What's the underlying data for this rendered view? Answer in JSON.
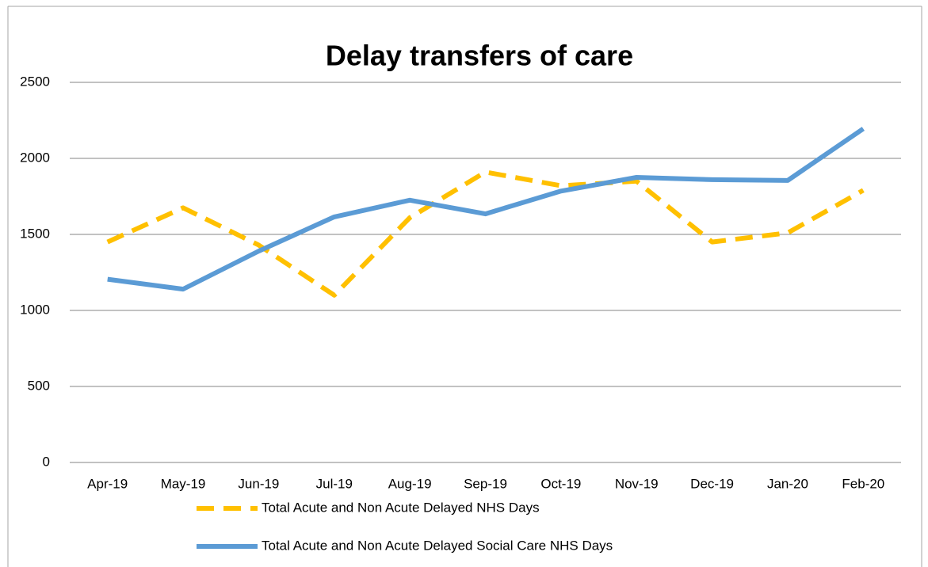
{
  "chart_data": {
    "type": "line",
    "title": "Delay transfers of care",
    "categories": [
      "Apr-19",
      "May-19",
      "Jun-19",
      "Jul-19",
      "Aug-19",
      "Sep-19",
      "Oct-19",
      "Nov-19",
      "Dec-19",
      "Jan-20",
      "Feb-20"
    ],
    "series": [
      {
        "name": "Total Acute and Non Acute Delayed NHS Days",
        "color": "#ffc000",
        "style": "dashed",
        "values": [
          1450,
          1675,
          1430,
          1100,
          1610,
          1910,
          1820,
          1850,
          1450,
          1510,
          1790
        ]
      },
      {
        "name": "Total Acute and Non Acute Delayed Social Care NHS Days",
        "color": "#5b9bd5",
        "style": "solid",
        "values": [
          1205,
          1140,
          1390,
          1615,
          1725,
          1635,
          1785,
          1875,
          1860,
          1855,
          2195
        ]
      }
    ],
    "ylim": [
      0,
      2500
    ],
    "yticks": [
      0,
      500,
      1000,
      1500,
      2000,
      2500
    ],
    "grid": true,
    "legend": "bottom"
  }
}
